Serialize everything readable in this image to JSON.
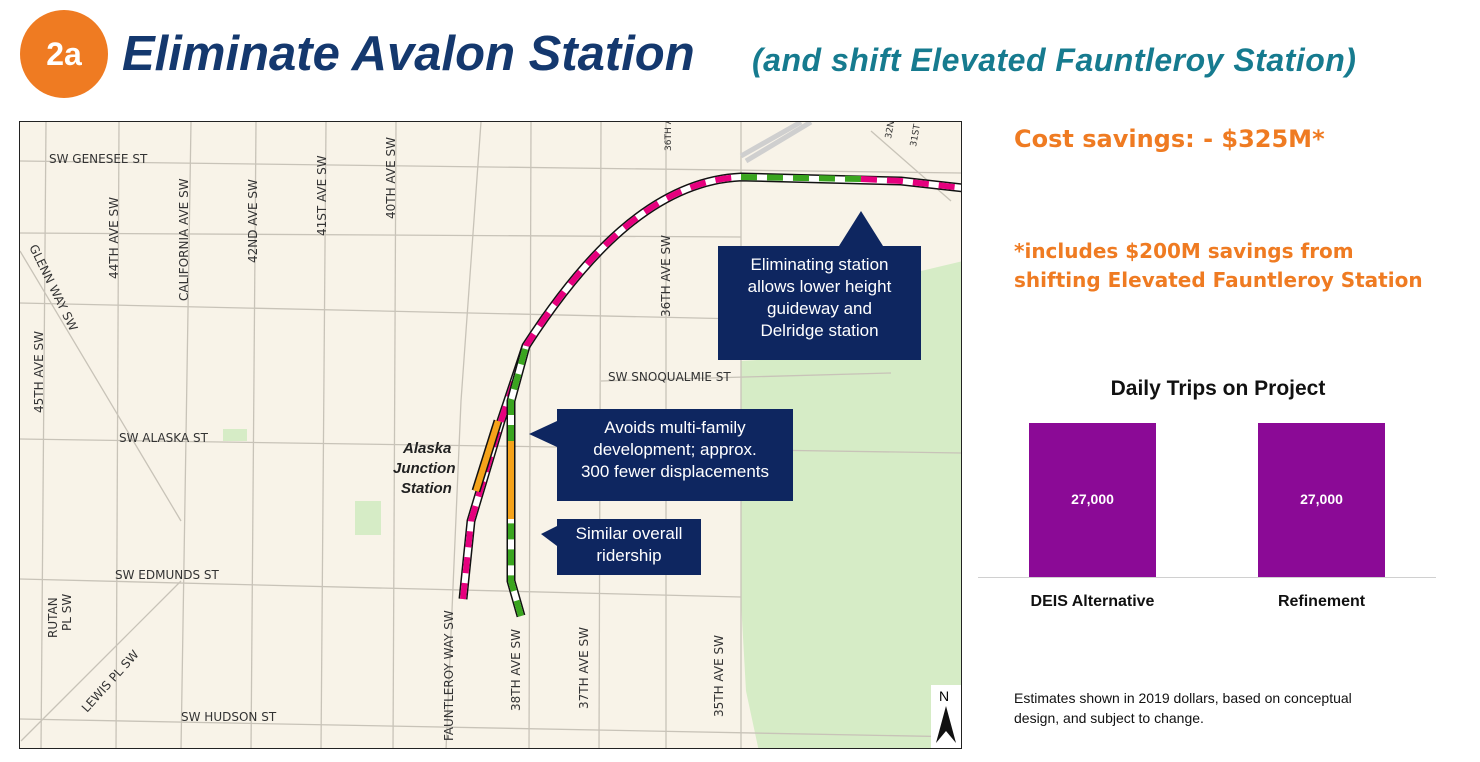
{
  "header": {
    "badge": "2a",
    "title": "Eliminate Avalon Station",
    "subtitle": "(and shift Elevated Fauntleroy Station)"
  },
  "map": {
    "streets": {
      "genesee": "SW GENESEE ST",
      "alaska": "SW ALASKA ST",
      "edmunds": "SW EDMUNDS ST",
      "hudson": "SW HUDSON ST",
      "snoqualmie": "SW SNOQUALMIE ST",
      "ave45": "45TH AVE SW",
      "ave44": "44TH AVE SW",
      "california": "CALIFORNIA AVE SW",
      "ave42": "42ND AVE SW",
      "ave41": "41ST AVE SW",
      "ave40": "40TH AVE SW",
      "ave36": "36TH AVE SW",
      "ave36top": "36TH A",
      "ave38": "38TH AVE SW",
      "ave37": "37TH AVE SW",
      "ave35": "35TH AVE SW",
      "fauntleroy": "FAUNTLEROY WAY SW",
      "glenn": "GLENN WAY SW",
      "rutan1": "RUTAN",
      "rutan2": "PL SW",
      "lewis": "LEWIS PL SW",
      "n32": "32N",
      "st31": "31ST"
    },
    "station": [
      "Alaska",
      "Junction",
      "Station"
    ],
    "callouts": [
      {
        "lines": [
          "Eliminating station",
          "allows lower height",
          "guideway and",
          "Delridge station"
        ]
      },
      {
        "lines": [
          "Avoids multi-family",
          "development; approx.",
          "300 fewer displacements"
        ]
      },
      {
        "lines": [
          "Similar overall",
          "ridership"
        ]
      }
    ],
    "north_label": "N",
    "colors": {
      "route_pink": "#e6007e",
      "route_green": "#3aa51f",
      "route_orange": "#f5a31a",
      "park": "#d6ecc6",
      "callout": "#0e2660"
    }
  },
  "cost": {
    "savings": "Cost savings:  - $325M*",
    "footnote_lines": [
      "*includes $200M savings from",
      "shifting Elevated Fauntleroy Station"
    ]
  },
  "chart_data": {
    "type": "bar",
    "title": "Daily Trips on Project",
    "categories": [
      "DEIS Alternative",
      "Refinement"
    ],
    "values": [
      27000,
      27000
    ],
    "data_labels": [
      "27,000",
      "27,000"
    ],
    "ylim": [
      0,
      27000
    ],
    "grid": false,
    "color": "#8b0a96"
  },
  "note": "Estimates shown in 2019 dollars, based on conceptual design, and subject to change."
}
